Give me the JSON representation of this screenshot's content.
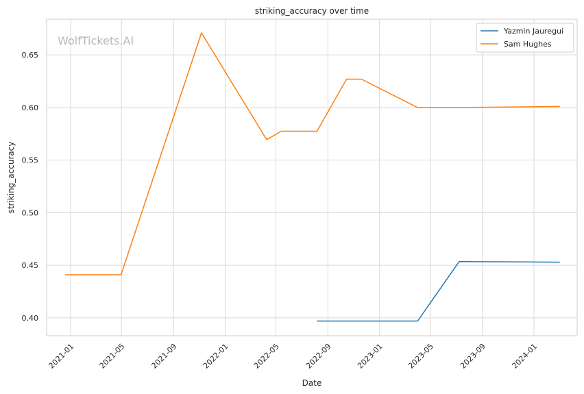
{
  "chart_data": {
    "type": "line",
    "title": "striking_accuracy over time",
    "xlabel": "Date",
    "ylabel": "striking_accuracy",
    "watermark": "WolfTickets.AI",
    "grid": true,
    "legend_position": "top-right",
    "xlim": [
      "2020-11-05",
      "2024-04-12"
    ],
    "ylim": [
      0.383,
      0.684
    ],
    "x_ticks": [
      "2021-01",
      "2021-05",
      "2021-09",
      "2022-01",
      "2022-05",
      "2022-09",
      "2023-01",
      "2023-05",
      "2023-09",
      "2024-01"
    ],
    "y_ticks": [
      "0.40",
      "0.45",
      "0.50",
      "0.55",
      "0.60",
      "0.65"
    ],
    "series": [
      {
        "name": "Yazmin Jauregui",
        "color": "#1f77b4",
        "points": [
          {
            "x": "2022-08-06",
            "y": 0.397
          },
          {
            "x": "2023-04-01",
            "y": 0.397
          },
          {
            "x": "2023-07-08",
            "y": 0.4535
          },
          {
            "x": "2024-03-02",
            "y": 0.453
          }
        ]
      },
      {
        "name": "Sam Hughes",
        "color": "#ff7f0e",
        "points": [
          {
            "x": "2020-12-19",
            "y": 0.441
          },
          {
            "x": "2021-04-30",
            "y": 0.441
          },
          {
            "x": "2021-11-06",
            "y": 0.671
          },
          {
            "x": "2022-04-09",
            "y": 0.5695
          },
          {
            "x": "2022-05-14",
            "y": 0.5775
          },
          {
            "x": "2022-08-06",
            "y": 0.5775
          },
          {
            "x": "2022-10-15",
            "y": 0.627
          },
          {
            "x": "2022-11-19",
            "y": 0.627
          },
          {
            "x": "2023-04-01",
            "y": 0.6
          },
          {
            "x": "2023-07-08",
            "y": 0.6
          },
          {
            "x": "2024-03-02",
            "y": 0.601
          }
        ]
      }
    ]
  }
}
